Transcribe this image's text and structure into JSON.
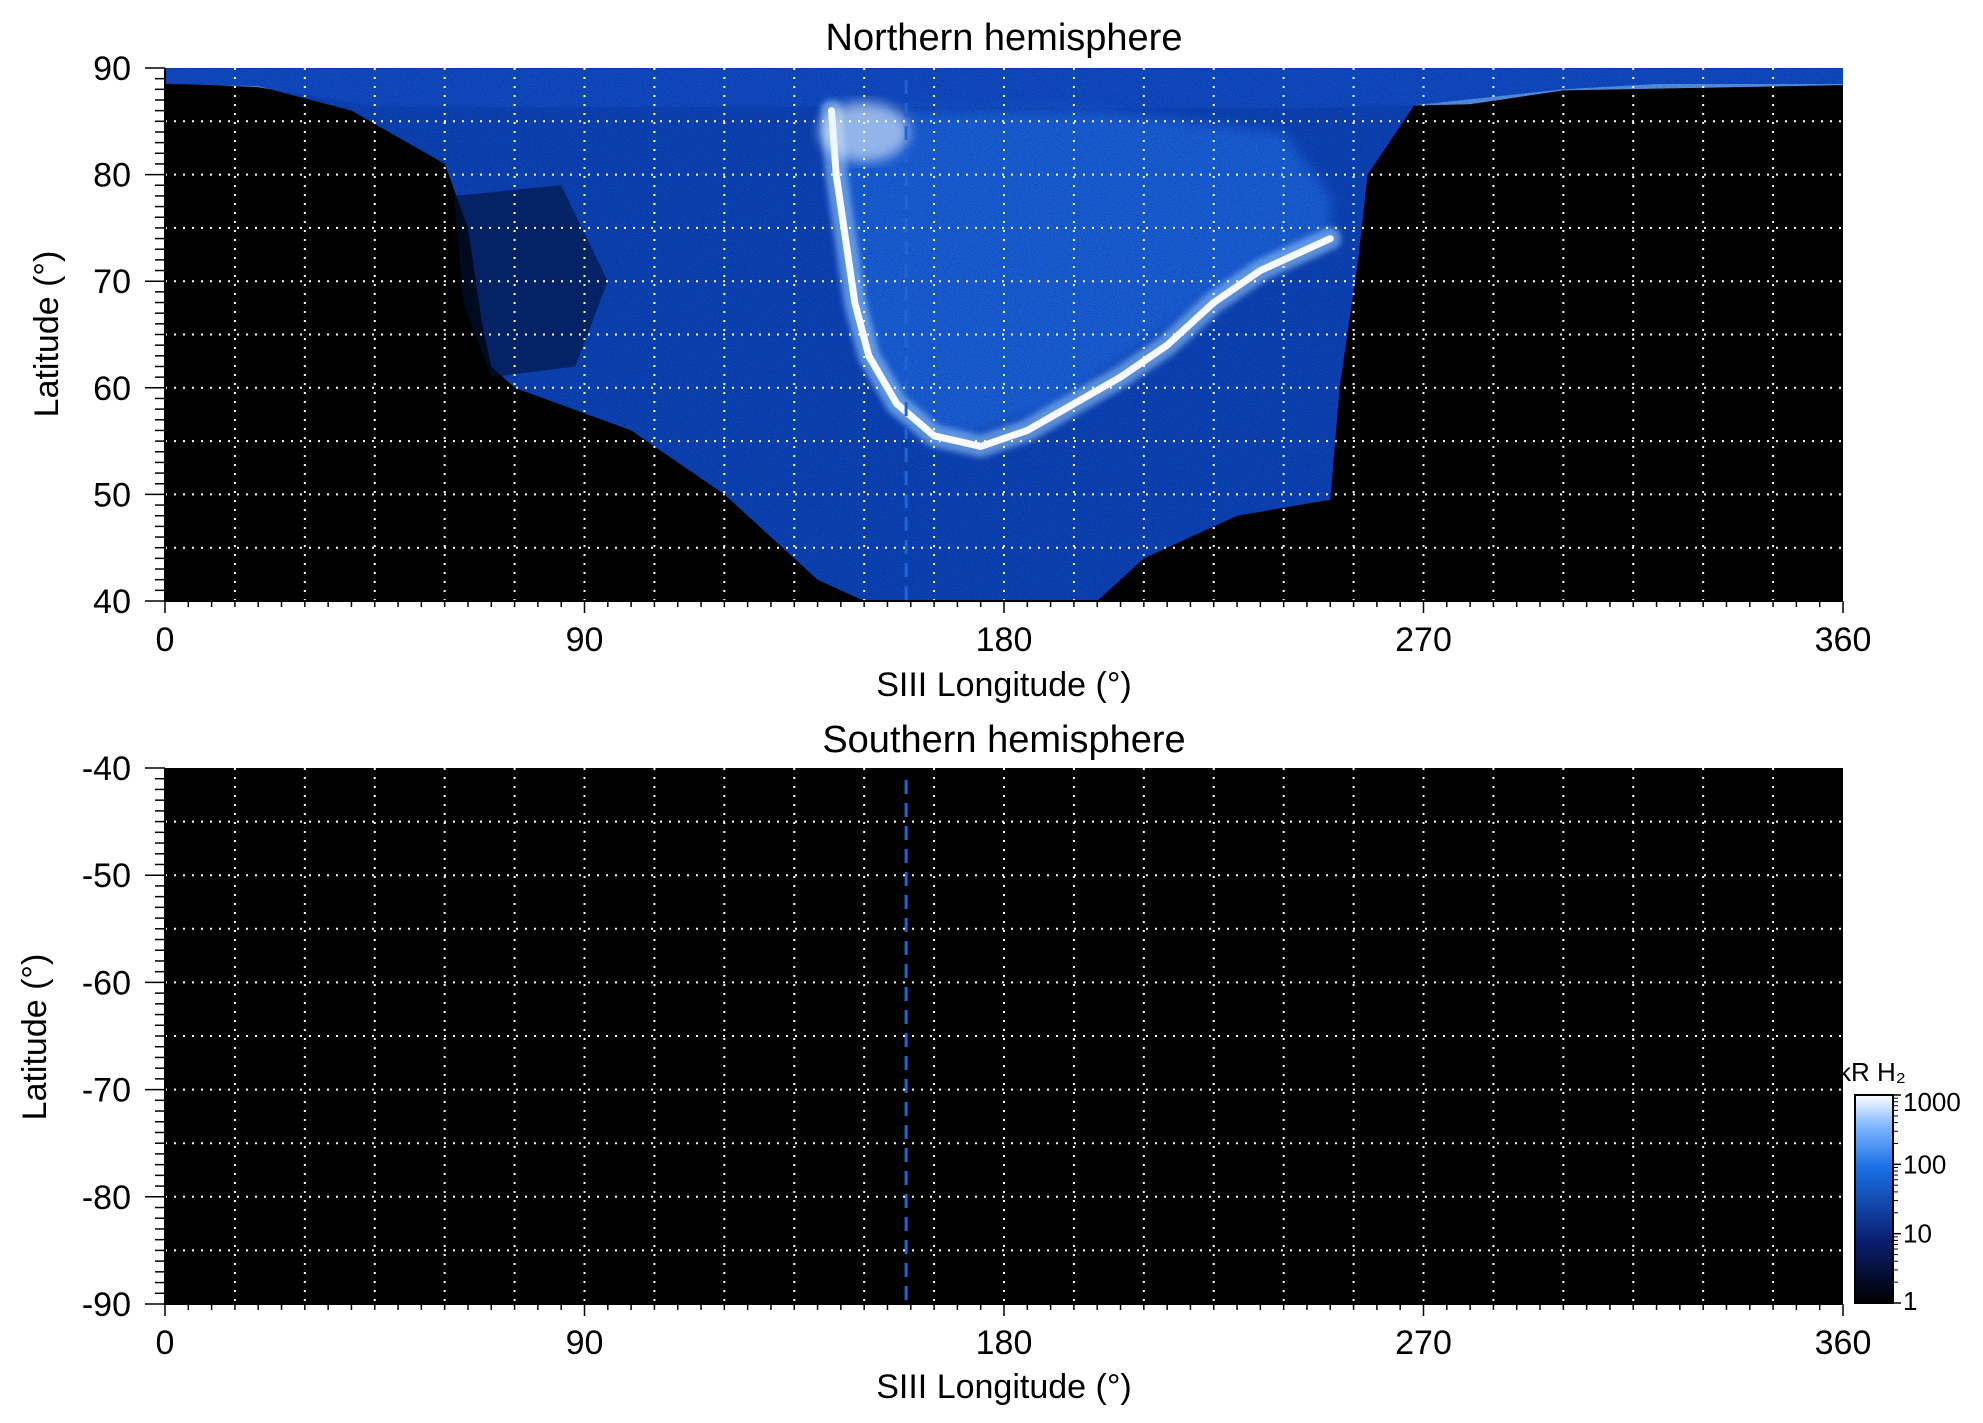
{
  "chart_data": [
    {
      "type": "heatmap",
      "title": "Northern hemisphere",
      "xlabel": "SIII Longitude (°)",
      "ylabel": "Latitude (°)",
      "xlim": [
        0,
        360
      ],
      "ylim": [
        40,
        90
      ],
      "xticks": [
        "0",
        "90",
        "180",
        "270",
        "360"
      ],
      "yticks": [
        "40",
        "50",
        "60",
        "70",
        "80",
        "90"
      ],
      "grid": true,
      "dashed_reference_longitude": 159,
      "auroral_oval": {
        "main_emission": [
          [
            143,
            86
          ],
          [
            144,
            80
          ],
          [
            146,
            74
          ],
          [
            148,
            68
          ],
          [
            151,
            63
          ],
          [
            157,
            58.5
          ],
          [
            165,
            55.5
          ],
          [
            175,
            54.5
          ],
          [
            185,
            56
          ],
          [
            195,
            58.5
          ],
          [
            205,
            61
          ],
          [
            215,
            64
          ],
          [
            225,
            68
          ],
          [
            235,
            71
          ],
          [
            245,
            73
          ],
          [
            250,
            74
          ]
        ],
        "cap_edge": [
          [
            0,
            88.5
          ],
          [
            20,
            88.3
          ],
          [
            40,
            86
          ],
          [
            60,
            81
          ],
          [
            65,
            75
          ],
          [
            68,
            66
          ],
          [
            70,
            62
          ],
          [
            75,
            60
          ],
          [
            100,
            56
          ],
          [
            120,
            50
          ],
          [
            140,
            42
          ],
          [
            150,
            40
          ],
          [
            200,
            40
          ],
          [
            210,
            44
          ],
          [
            230,
            48
          ],
          [
            250,
            49.5
          ],
          [
            252,
            60
          ],
          [
            256,
            72
          ],
          [
            258,
            80
          ],
          [
            268,
            86.5
          ],
          [
            300,
            88
          ],
          [
            320,
            88.5
          ],
          [
            360,
            88.5
          ]
        ]
      },
      "colorbar": {
        "label": "kR H₂",
        "scale": "log",
        "range": [
          1,
          1000
        ],
        "ticks": [
          "1",
          "10",
          "100",
          "1000"
        ],
        "colors": [
          "#000000",
          "#0a1f70",
          "#1a6fe6",
          "#ffffff"
        ]
      }
    },
    {
      "type": "heatmap",
      "title": "Southern hemisphere",
      "xlabel": "SIII Longitude (°)",
      "ylabel": "Latitude (°)",
      "xlim": [
        0,
        360
      ],
      "ylim": [
        -90,
        -40
      ],
      "xticks": [
        "0",
        "90",
        "180",
        "270",
        "360"
      ],
      "yticks": [
        "-90",
        "-80",
        "-70",
        "-60",
        "-50",
        "-40"
      ],
      "grid": true,
      "dashed_reference_longitude": 159,
      "note_values": "no emission (entire panel at minimum)"
    }
  ]
}
